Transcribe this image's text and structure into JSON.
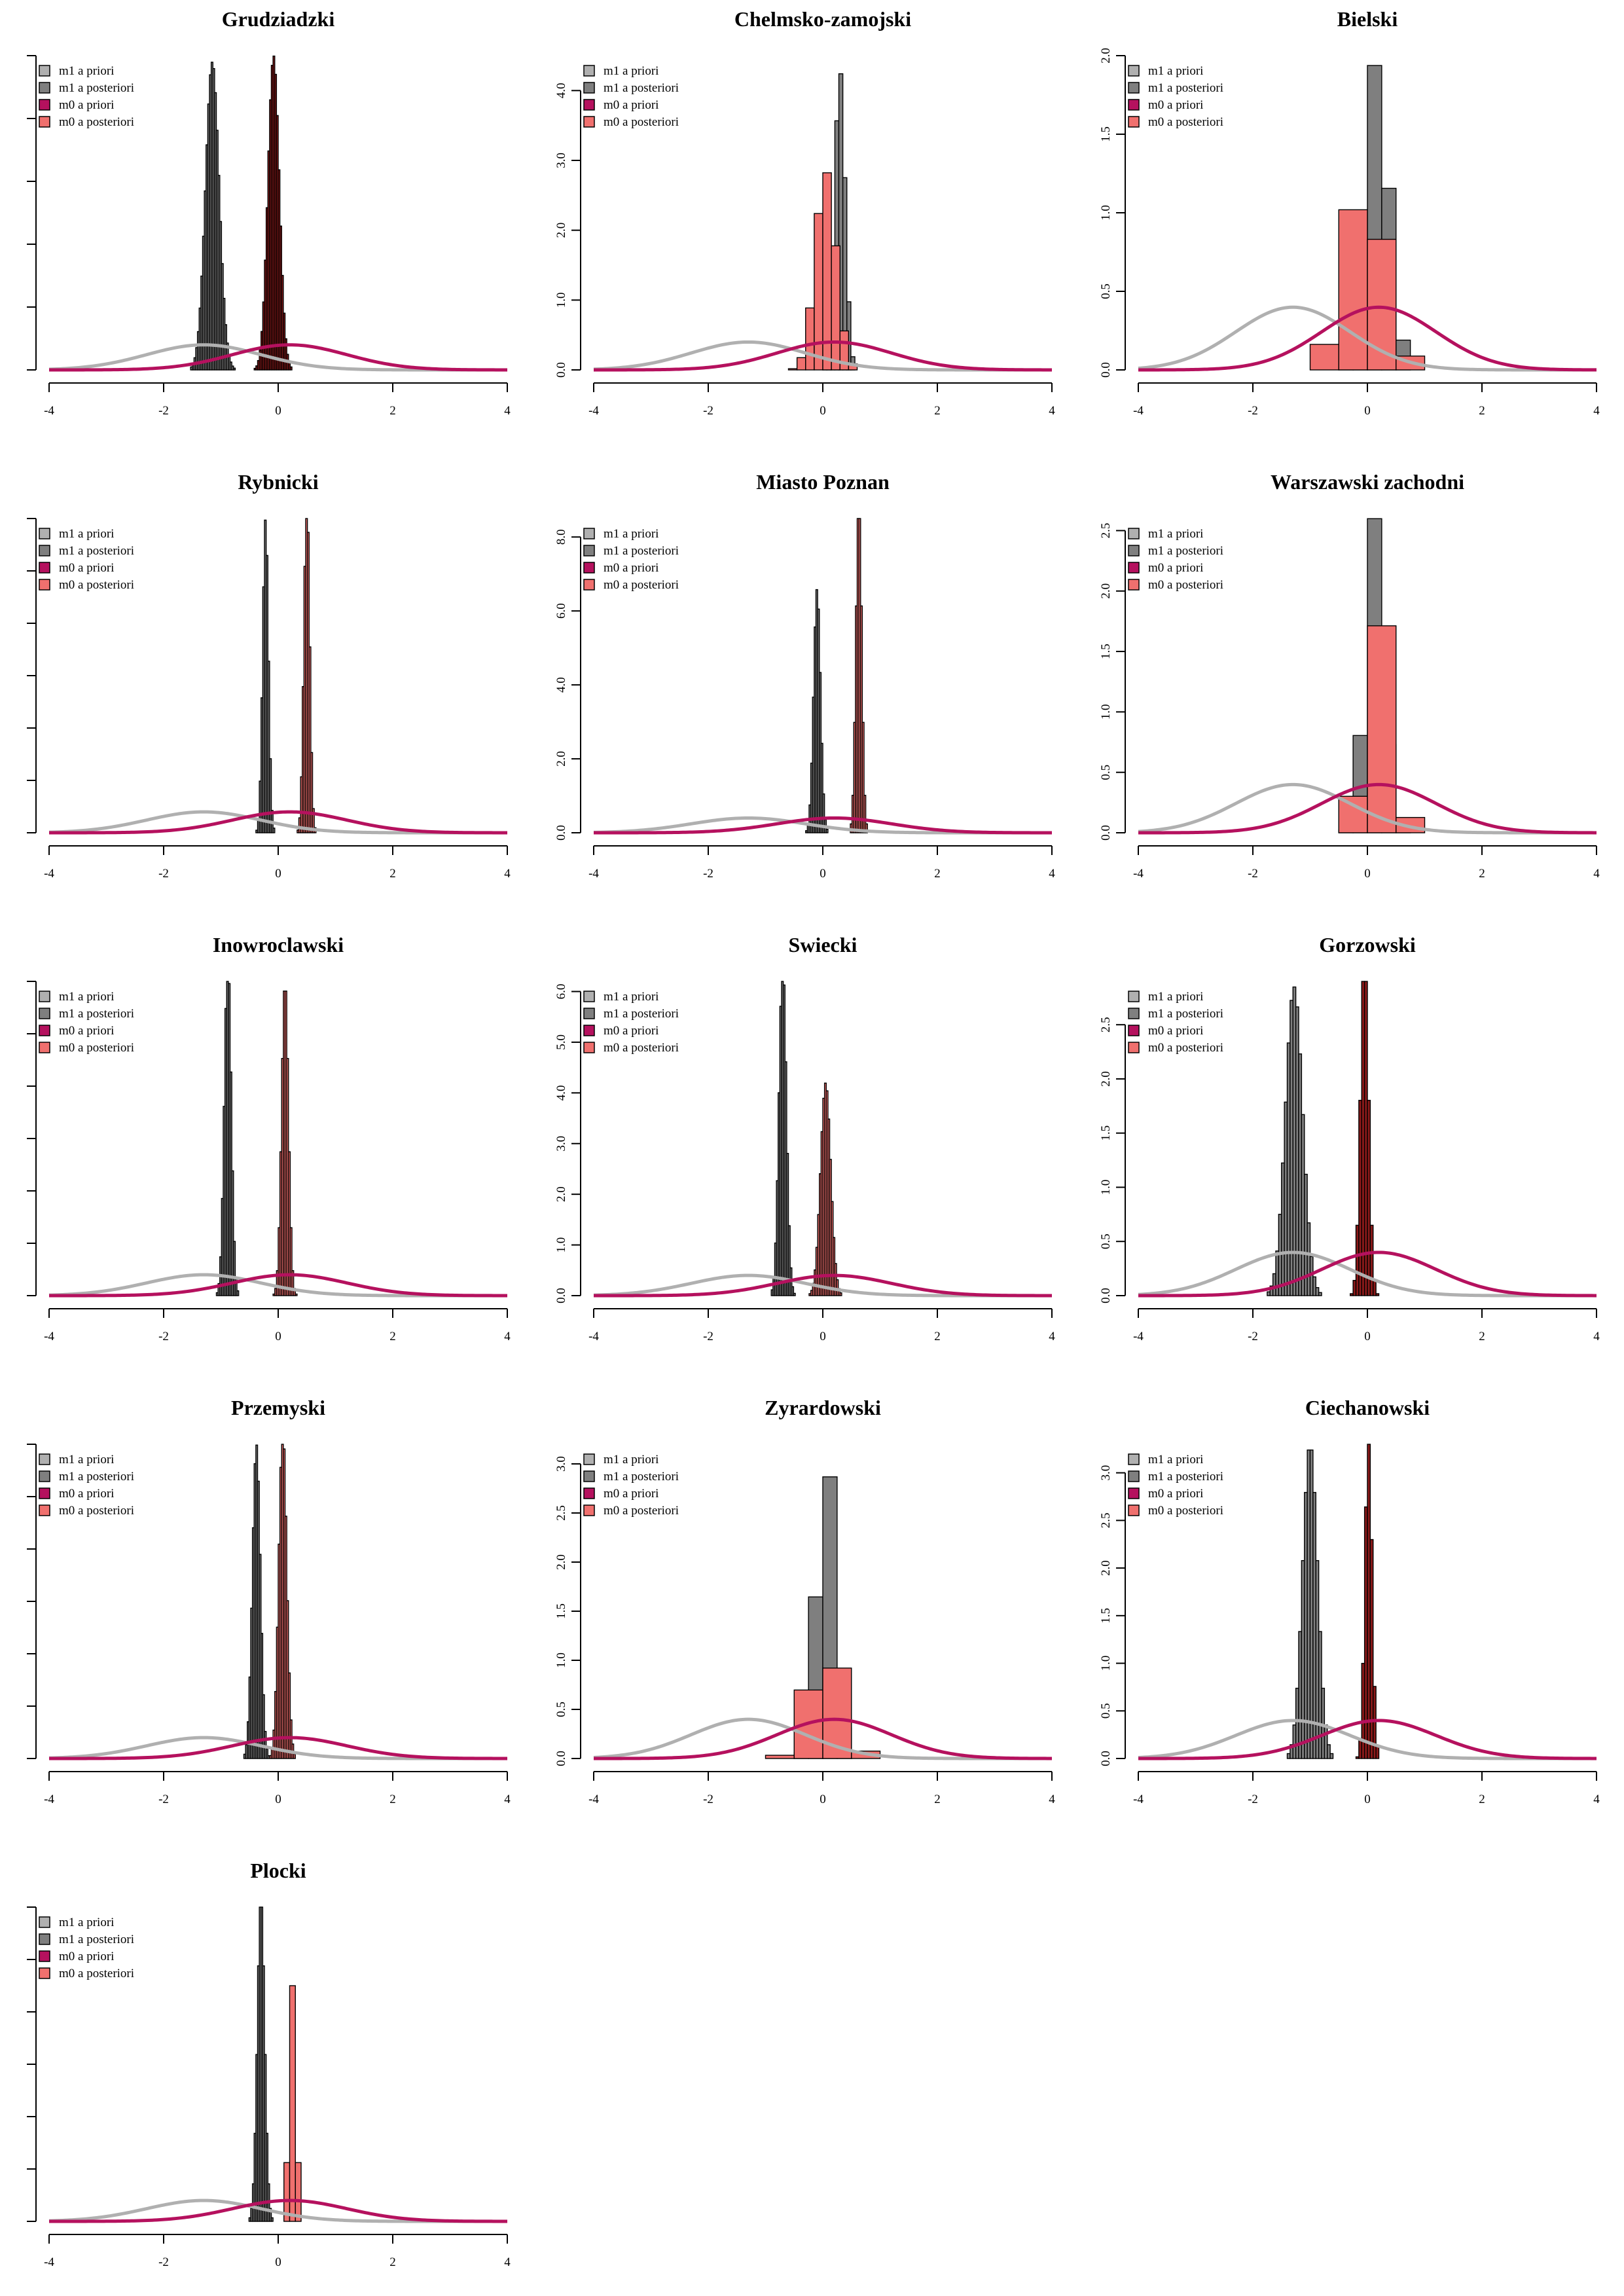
{
  "figure": {
    "legend_labels": [
      "m1 a priori",
      "m1 a posteriori",
      "m0 a priori",
      "m0 a posteriori"
    ],
    "x_ticks": [
      -4,
      -2,
      0,
      2,
      4
    ],
    "colors": {
      "m1_prior": "#b0b0b0",
      "m1_post": "#7f7f7f",
      "m0_prior": "#b5115e",
      "m0_post": "#f0706e",
      "m0_post_overlap": "#8b1a1a",
      "hist_stroke": "#000000"
    }
  },
  "chart_data": [
    {
      "type": "bar",
      "title": "Grudziadzki",
      "xlim": [
        -4,
        4
      ],
      "ylim": [
        0,
        5
      ],
      "yticks": [
        0,
        1,
        2,
        3,
        4,
        5
      ],
      "show_ytick_labels": false,
      "priors": {
        "m1_mean": -1.3,
        "m0_mean": 0.2,
        "sd": 1.0
      },
      "m1_post": {
        "mean": -1.15,
        "sd": 0.12,
        "peak": 4.9,
        "bin": 0.03,
        "fill": "#7f7f7f"
      },
      "m0_post": {
        "mean": -0.08,
        "sd": 0.1,
        "peak": 5.0,
        "bin": 0.03,
        "fill": "#8b1a1a"
      }
    },
    {
      "type": "bar",
      "title": "Chelmsko-zamojski",
      "xlim": [
        -4,
        4
      ],
      "ylim": [
        0,
        4.5
      ],
      "yticks": [
        0,
        1,
        2,
        3,
        4
      ],
      "show_ytick_labels": true,
      "priors": {
        "m1_mean": -1.3,
        "m0_mean": 0.2,
        "sd": 1.0
      },
      "m1_post": {
        "mean": 0.3,
        "sd": 0.09,
        "peak": 4.3,
        "bin": 0.07,
        "fill": "#7f7f7f"
      },
      "m0_post": {
        "mean": 0.05,
        "sd": 0.18,
        "peak": 2.85,
        "bin": 0.15,
        "fill": "#f0706e"
      }
    },
    {
      "type": "bar",
      "title": "Bielski",
      "xlim": [
        -4,
        4
      ],
      "ylim": [
        0,
        2.0
      ],
      "yticks": [
        0,
        0.5,
        1.0,
        1.5,
        2.0
      ],
      "show_ytick_labels": true,
      "priors": {
        "m1_mean": -1.3,
        "m0_mean": 0.2,
        "sd": 1.0
      },
      "m1_post": {
        "mean": 0.15,
        "sd": 0.22,
        "peak": 1.95,
        "bin": 0.25,
        "fill": "#7f7f7f"
      },
      "m0_post": {
        "mean": -0.05,
        "sd": 0.35,
        "peak": 1.2,
        "bin": 0.5,
        "fill": "#f0706e"
      }
    },
    {
      "type": "bar",
      "title": "Rybnicki",
      "xlim": [
        -4,
        4
      ],
      "ylim": [
        0,
        6
      ],
      "yticks": [
        0,
        1,
        2,
        3,
        4,
        5,
        6
      ],
      "show_ytick_labels": false,
      "priors": {
        "m1_mean": -1.3,
        "m0_mean": 0.2,
        "sd": 1.0
      },
      "m1_post": {
        "mean": -0.22,
        "sd": 0.05,
        "peak": 6.0,
        "bin": 0.03,
        "fill": "#7f7f7f"
      },
      "m0_post": {
        "mean": 0.5,
        "sd": 0.05,
        "peak": 6.5,
        "bin": 0.03,
        "fill": "#f0706e"
      }
    },
    {
      "type": "bar",
      "title": "Miasto Poznan",
      "xlim": [
        -4,
        4
      ],
      "ylim": [
        0,
        8.5
      ],
      "yticks": [
        0,
        2,
        4,
        6,
        8
      ],
      "show_ytick_labels": true,
      "priors": {
        "m1_mean": -1.3,
        "m0_mean": 0.2,
        "sd": 1.0
      },
      "m1_post": {
        "mean": -0.1,
        "sd": 0.06,
        "peak": 6.6,
        "bin": 0.03,
        "fill": "#7f7f7f"
      },
      "m0_post": {
        "mean": 0.63,
        "sd": 0.05,
        "peak": 9.2,
        "bin": 0.03,
        "fill": "#f0706e"
      }
    },
    {
      "type": "bar",
      "title": "Warszawski zachodni",
      "xlim": [
        -4,
        4
      ],
      "ylim": [
        0,
        2.6
      ],
      "yticks": [
        0,
        0.5,
        1.0,
        1.5,
        2.0,
        2.5
      ],
      "show_ytick_labels": true,
      "priors": {
        "m1_mean": -1.3,
        "m0_mean": 0.2,
        "sd": 1.0
      },
      "m1_post": {
        "mean": 0.12,
        "sd": 0.16,
        "peak": 2.6,
        "bin": 0.25,
        "fill": "#7f7f7f"
      },
      "m0_post": {
        "mean": 0.2,
        "sd": 0.24,
        "peak": 1.75,
        "bin": 0.5,
        "fill": "#f0706e"
      }
    },
    {
      "type": "bar",
      "title": "Inowroclawski",
      "xlim": [
        -4,
        4
      ],
      "ylim": [
        0,
        6
      ],
      "yticks": [
        0,
        1,
        2,
        3,
        4,
        5,
        6
      ],
      "show_ytick_labels": false,
      "priors": {
        "m1_mean": -1.3,
        "m0_mean": 0.2,
        "sd": 1.0
      },
      "m1_post": {
        "mean": -0.88,
        "sd": 0.06,
        "peak": 6.5,
        "bin": 0.03,
        "fill": "#7f7f7f"
      },
      "m0_post": {
        "mean": 0.12,
        "sd": 0.06,
        "peak": 6.0,
        "bin": 0.03,
        "fill": "#f0706e"
      }
    },
    {
      "type": "bar",
      "title": "Swiecki",
      "xlim": [
        -4,
        4
      ],
      "ylim": [
        0,
        6.2
      ],
      "yticks": [
        0,
        1,
        2,
        3,
        4,
        5,
        6
      ],
      "show_ytick_labels": true,
      "priors": {
        "m1_mean": -1.3,
        "m0_mean": 0.2,
        "sd": 1.0
      },
      "m1_post": {
        "mean": -0.7,
        "sd": 0.065,
        "peak": 6.6,
        "bin": 0.03,
        "fill": "#7f7f7f"
      },
      "m0_post": {
        "mean": 0.05,
        "sd": 0.09,
        "peak": 4.2,
        "bin": 0.03,
        "fill": "#f0706e"
      }
    },
    {
      "type": "bar",
      "title": "Gorzowski",
      "xlim": [
        -4,
        4
      ],
      "ylim": [
        0,
        2.9
      ],
      "yticks": [
        0,
        0.5,
        1.0,
        1.5,
        2.0,
        2.5
      ],
      "show_ytick_labels": true,
      "priors": {
        "m1_mean": -1.3,
        "m0_mean": 0.2,
        "sd": 1.0
      },
      "m1_post": {
        "mean": -1.28,
        "sd": 0.15,
        "peak": 2.85,
        "bin": 0.05,
        "fill": "#7f7f7f"
      },
      "m0_post": {
        "mean": -0.05,
        "sd": 0.07,
        "peak": 3.2,
        "bin": 0.05,
        "fill": "#8b1a1a"
      }
    },
    {
      "type": "bar",
      "title": "Przemyski",
      "xlim": [
        -4,
        4
      ],
      "ylim": [
        0,
        6
      ],
      "yticks": [
        0,
        1,
        2,
        3,
        4,
        5,
        6
      ],
      "show_ytick_labels": false,
      "priors": {
        "m1_mean": -1.3,
        "m0_mean": 0.2,
        "sd": 1.0
      },
      "m1_post": {
        "mean": -0.38,
        "sd": 0.07,
        "peak": 6.0,
        "bin": 0.03,
        "fill": "#7f7f7f"
      },
      "m0_post": {
        "mean": 0.08,
        "sd": 0.07,
        "peak": 6.3,
        "bin": 0.03,
        "fill": "#f0706e"
      }
    },
    {
      "type": "bar",
      "title": "Zyrardowski",
      "xlim": [
        -4,
        4
      ],
      "ylim": [
        0,
        3.2
      ],
      "yticks": [
        0,
        0.5,
        1.0,
        1.5,
        2.0,
        2.5,
        3.0
      ],
      "show_ytick_labels": true,
      "priors": {
        "m1_mean": -1.3,
        "m0_mean": 0.2,
        "sd": 1.0
      },
      "m1_post": {
        "mean": 0.05,
        "sd": 0.15,
        "peak": 3.25,
        "bin": 0.25,
        "fill": "#7f7f7f"
      },
      "m0_post": {
        "mean": 0.05,
        "sd": 0.3,
        "peak": 1.15,
        "bin": 0.5,
        "fill": "#f0706e"
      }
    },
    {
      "type": "bar",
      "title": "Ciechanowski",
      "xlim": [
        -4,
        4
      ],
      "ylim": [
        0,
        3.3
      ],
      "yticks": [
        0,
        0.5,
        1.0,
        1.5,
        2.0,
        2.5,
        3.0
      ],
      "show_ytick_labels": true,
      "priors": {
        "m1_mean": -1.3,
        "m0_mean": 0.2,
        "sd": 1.0
      },
      "m1_post": {
        "mean": -1.0,
        "sd": 0.13,
        "peak": 3.3,
        "bin": 0.05,
        "fill": "#7f7f7f"
      },
      "m0_post": {
        "mean": 0.02,
        "sd": 0.06,
        "peak": 3.5,
        "bin": 0.05,
        "fill": "#8b1a1a"
      }
    },
    {
      "type": "bar",
      "title": "Plocki",
      "xlim": [
        -4,
        4
      ],
      "ylim": [
        0,
        6
      ],
      "yticks": [
        0,
        1,
        2,
        3,
        4,
        5,
        6
      ],
      "show_ytick_labels": false,
      "priors": {
        "m1_mean": -1.3,
        "m0_mean": 0.2,
        "sd": 1.0
      },
      "m1_post": {
        "mean": -0.3,
        "sd": 0.065,
        "peak": 6.2,
        "bin": 0.03,
        "fill": "#7f7f7f"
      },
      "m0_post": {
        "mean": 0.25,
        "sd": 0.06,
        "peak": 4.5,
        "bin": 0.1,
        "fill": "#f0706e"
      }
    }
  ]
}
